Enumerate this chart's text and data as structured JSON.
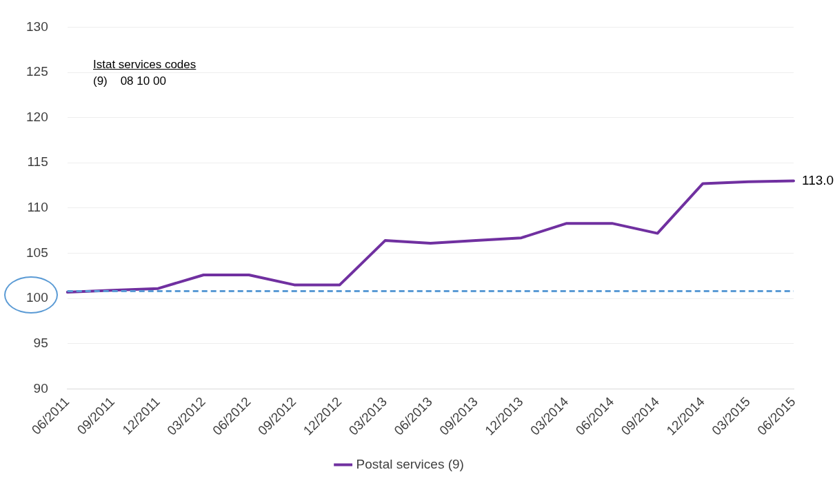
{
  "chart_data": {
    "type": "line",
    "categories": [
      "06/2011",
      "09/2011",
      "12/2011",
      "03/2012",
      "06/2012",
      "09/2012",
      "12/2012",
      "03/2013",
      "06/2013",
      "09/2013",
      "12/2013",
      "03/2014",
      "06/2014",
      "09/2014",
      "12/2014",
      "03/2015",
      "06/2015"
    ],
    "series": [
      {
        "name": "Postal services (9)",
        "color": "#7030a0",
        "values": [
          100.7,
          100.9,
          101.1,
          102.6,
          102.6,
          101.5,
          101.5,
          106.4,
          106.1,
          106.4,
          106.7,
          108.3,
          108.3,
          107.2,
          112.7,
          112.9,
          113.0
        ],
        "value_labels": [
          null,
          null,
          null,
          null,
          null,
          null,
          null,
          null,
          null,
          null,
          null,
          null,
          null,
          null,
          null,
          null,
          "113.0"
        ]
      }
    ],
    "ylim": [
      90,
      130
    ],
    "yticks": [
      90,
      95,
      100,
      105,
      110,
      115,
      120,
      125,
      130
    ],
    "grid": "y",
    "legend": "bottom",
    "marker": "none",
    "line_style": "solid",
    "ref_lines": [
      {
        "axis": "y",
        "value": 100.8,
        "color": "#5b9bd5",
        "line_style": "dashed"
      }
    ],
    "annotations": [
      "Istat services codes",
      "(9)    08 10 00"
    ]
  }
}
